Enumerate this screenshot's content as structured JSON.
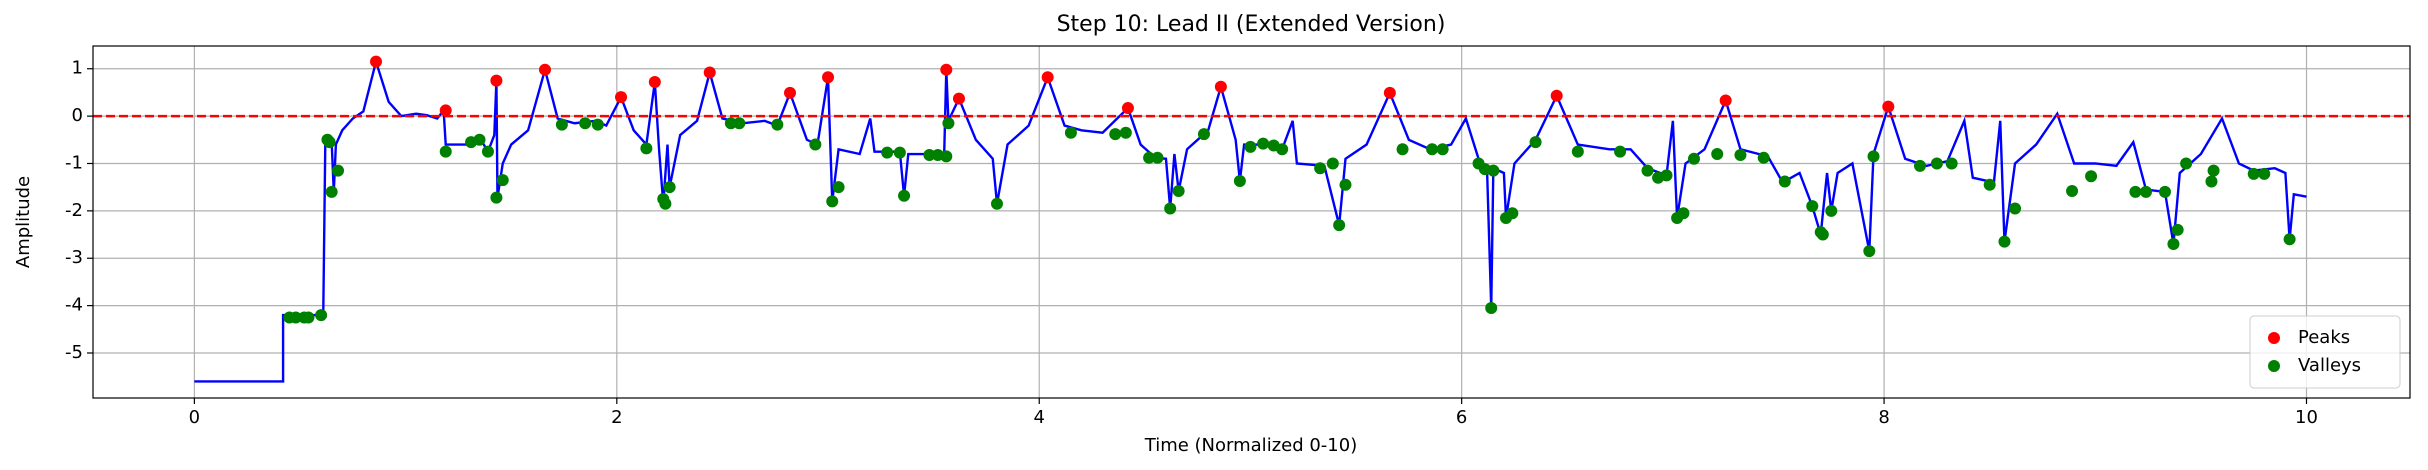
{
  "chart_data": {
    "type": "line",
    "title": "Step 10: Lead II (Extended Version)",
    "xlabel": "Time (Normalized 0-10)",
    "ylabel": "Amplitude",
    "xlim": [
      -0.48,
      10.49
    ],
    "ylim": [
      -5.95,
      1.48
    ],
    "xticks": [
      0,
      2,
      4,
      6,
      8,
      10
    ],
    "yticks": [
      -5,
      -4,
      -3,
      -2,
      -1,
      0,
      1
    ],
    "grid": true,
    "legend": "lower right",
    "hline": {
      "value": 0,
      "color": "#ff0000"
    },
    "line": {
      "color": "#0000ff",
      "x": [
        0,
        0.42,
        0.42,
        0.6,
        0.61,
        0.62,
        0.65,
        0.66,
        0.67,
        0.7,
        0.75,
        0.8,
        0.86,
        0.92,
        0.98,
        1.05,
        1.1,
        1.15,
        1.18,
        1.19,
        1.3,
        1.35,
        1.39,
        1.42,
        1.43,
        1.435,
        1.46,
        1.5,
        1.58,
        1.66,
        1.72,
        1.8,
        1.9,
        1.95,
        2.02,
        2.08,
        2.14,
        2.18,
        2.2,
        2.22,
        2.24,
        2.25,
        2.3,
        2.38,
        2.44,
        2.5,
        2.6,
        2.7,
        2.76,
        2.82,
        2.9,
        2.95,
        3.0,
        3.02,
        3.05,
        3.15,
        3.2,
        3.22,
        3.34,
        3.36,
        3.38,
        3.55,
        3.56,
        3.57,
        3.62,
        3.7,
        3.78,
        3.8,
        3.85,
        3.95,
        4.04,
        4.12,
        4.2,
        4.3,
        4.42,
        4.48,
        4.55,
        4.6,
        4.62,
        4.64,
        4.66,
        4.7,
        4.8,
        4.86,
        4.93,
        4.95,
        4.97,
        5.1,
        5.15,
        5.2,
        5.22,
        5.35,
        5.42,
        5.45,
        5.55,
        5.66,
        5.75,
        5.85,
        5.95,
        6.02,
        6.08,
        6.12,
        6.14,
        6.15,
        6.2,
        6.21,
        6.25,
        6.35,
        6.45,
        6.55,
        6.7,
        6.8,
        6.88,
        6.97,
        7.0,
        7.02,
        7.06,
        7.15,
        7.25,
        7.32,
        7.45,
        7.52,
        7.6,
        7.66,
        7.7,
        7.73,
        7.75,
        7.78,
        7.85,
        7.93,
        7.95,
        8.02,
        8.1,
        8.2,
        8.3,
        8.38,
        8.42,
        8.52,
        8.55,
        8.57,
        8.62,
        8.72,
        8.82,
        8.9,
        9.0,
        9.1,
        9.18,
        9.24,
        9.33,
        9.37,
        9.4,
        9.5,
        9.6,
        9.68,
        9.75,
        9.85,
        9.9,
        9.92,
        9.94,
        10.0
      ],
      "y": [
        -5.6,
        -5.6,
        -4.2,
        -4.2,
        -4.25,
        -0.5,
        -0.55,
        -1.6,
        -0.6,
        -0.3,
        -0.05,
        0.1,
        1.15,
        0.3,
        0.0,
        0.05,
        0.02,
        -0.05,
        0.12,
        -0.6,
        -0.6,
        -0.45,
        -0.75,
        -0.4,
        0.75,
        -1.72,
        -1.0,
        -0.6,
        -0.3,
        0.98,
        -0.05,
        -0.15,
        -0.1,
        -0.2,
        0.4,
        -0.3,
        -0.6,
        0.72,
        -0.7,
        -1.85,
        -0.6,
        -1.5,
        -0.4,
        -0.1,
        0.92,
        -0.05,
        -0.15,
        -0.1,
        -0.2,
        0.49,
        -0.5,
        -0.6,
        0.82,
        -1.8,
        -0.7,
        -0.8,
        -0.05,
        -0.75,
        -0.75,
        -1.68,
        -0.8,
        -0.8,
        0.98,
        -0.1,
        0.37,
        -0.5,
        -0.9,
        -1.85,
        -0.6,
        -0.2,
        0.82,
        -0.2,
        -0.3,
        -0.35,
        0.17,
        -0.6,
        -0.88,
        -0.9,
        -1.95,
        -0.8,
        -1.58,
        -0.7,
        -0.3,
        0.62,
        -0.5,
        -1.37,
        -0.6,
        -0.6,
        -0.7,
        -0.1,
        -1.0,
        -1.05,
        -2.3,
        -0.9,
        -0.6,
        0.49,
        -0.5,
        -0.7,
        -0.6,
        -0.05,
        -0.9,
        -1.1,
        -4.05,
        -1.1,
        -1.2,
        -2.15,
        -1.0,
        -0.5,
        0.43,
        -0.6,
        -0.7,
        -0.7,
        -1.1,
        -1.25,
        -0.1,
        -2.15,
        -1.0,
        -0.7,
        0.33,
        -0.7,
        -0.85,
        -1.4,
        -1.2,
        -1.9,
        -2.5,
        -1.2,
        -2.0,
        -1.2,
        -1.0,
        -2.85,
        -0.8,
        0.2,
        -0.9,
        -1.05,
        -0.95,
        -0.1,
        -1.3,
        -1.4,
        -0.1,
        -2.65,
        -1.0,
        -0.6,
        0.05,
        -1.0,
        -1.0,
        -1.05,
        -0.55,
        -1.55,
        -1.6,
        -2.7,
        -1.2,
        -0.8,
        -0.05,
        -1.0,
        -1.15,
        -1.1,
        -1.2,
        -2.6,
        -1.65,
        -1.7
      ]
    },
    "series": [
      {
        "name": "Peaks",
        "color": "#ff0000",
        "x": [
          0.86,
          1.19,
          1.43,
          1.66,
          2.02,
          2.18,
          2.44,
          2.82,
          3.0,
          3.56,
          3.62,
          4.04,
          4.42,
          4.86,
          5.66,
          6.45,
          7.25,
          8.02
        ],
        "y": [
          1.15,
          0.12,
          0.75,
          0.98,
          0.4,
          0.72,
          0.92,
          0.49,
          0.82,
          0.98,
          0.37,
          0.82,
          0.17,
          0.62,
          0.49,
          0.43,
          0.33,
          0.2
        ]
      },
      {
        "name": "Valleys",
        "color": "#008000",
        "x": [
          0.45,
          0.48,
          0.52,
          0.54,
          0.6,
          0.63,
          0.64,
          0.65,
          0.68,
          1.19,
          1.31,
          1.35,
          1.39,
          1.43,
          1.46,
          1.74,
          1.85,
          1.91,
          2.14,
          2.22,
          2.23,
          2.25,
          2.54,
          2.58,
          2.76,
          2.94,
          3.02,
          3.05,
          3.28,
          3.34,
          3.36,
          3.48,
          3.52,
          3.56,
          3.57,
          3.8,
          4.15,
          4.36,
          4.41,
          4.52,
          4.56,
          4.62,
          4.66,
          4.78,
          4.95,
          5.0,
          5.06,
          5.11,
          5.15,
          5.33,
          5.39,
          5.42,
          5.45,
          5.72,
          5.86,
          5.91,
          6.08,
          6.11,
          6.14,
          6.15,
          6.21,
          6.24,
          6.35,
          6.55,
          6.75,
          6.88,
          6.93,
          6.97,
          7.02,
          7.05,
          7.1,
          7.21,
          7.32,
          7.43,
          7.53,
          7.66,
          7.7,
          7.71,
          7.75,
          7.93,
          7.95,
          8.17,
          8.25,
          8.32,
          8.5,
          8.57,
          8.62,
          8.89,
          8.98,
          9.19,
          9.24,
          9.33,
          9.37,
          9.39,
          9.43,
          9.55,
          9.56,
          9.75,
          9.8,
          9.92
        ],
        "y": [
          -4.25,
          -4.25,
          -4.25,
          -4.25,
          -4.2,
          -0.5,
          -0.55,
          -1.6,
          -1.15,
          -0.75,
          -0.55,
          -0.5,
          -0.75,
          -1.72,
          -1.35,
          -0.18,
          -0.15,
          -0.18,
          -0.68,
          -1.75,
          -1.85,
          -1.5,
          -0.15,
          -0.15,
          -0.18,
          -0.6,
          -1.8,
          -1.5,
          -0.77,
          -0.77,
          -1.68,
          -0.82,
          -0.82,
          -0.85,
          -0.15,
          -1.85,
          -0.35,
          -0.38,
          -0.35,
          -0.88,
          -0.88,
          -1.95,
          -1.58,
          -0.38,
          -1.37,
          -0.65,
          -0.58,
          -0.62,
          -0.7,
          -1.1,
          -1.0,
          -2.3,
          -1.45,
          -0.7,
          -0.7,
          -0.7,
          -1.0,
          -1.12,
          -4.05,
          -1.15,
          -2.15,
          -2.05,
          -0.55,
          -0.75,
          -0.75,
          -1.15,
          -1.3,
          -1.25,
          -2.15,
          -2.05,
          -0.9,
          -0.8,
          -0.82,
          -0.88,
          -1.38,
          -1.9,
          -2.45,
          -2.5,
          -2.0,
          -2.85,
          -0.85,
          -1.05,
          -1.0,
          -1.0,
          -1.45,
          -2.65,
          -1.95,
          -1.58,
          -1.27,
          -1.6,
          -1.6,
          -1.6,
          -2.7,
          -2.4,
          -1.0,
          -1.38,
          -1.15,
          -1.22,
          -1.22,
          -2.6
        ]
      }
    ]
  }
}
